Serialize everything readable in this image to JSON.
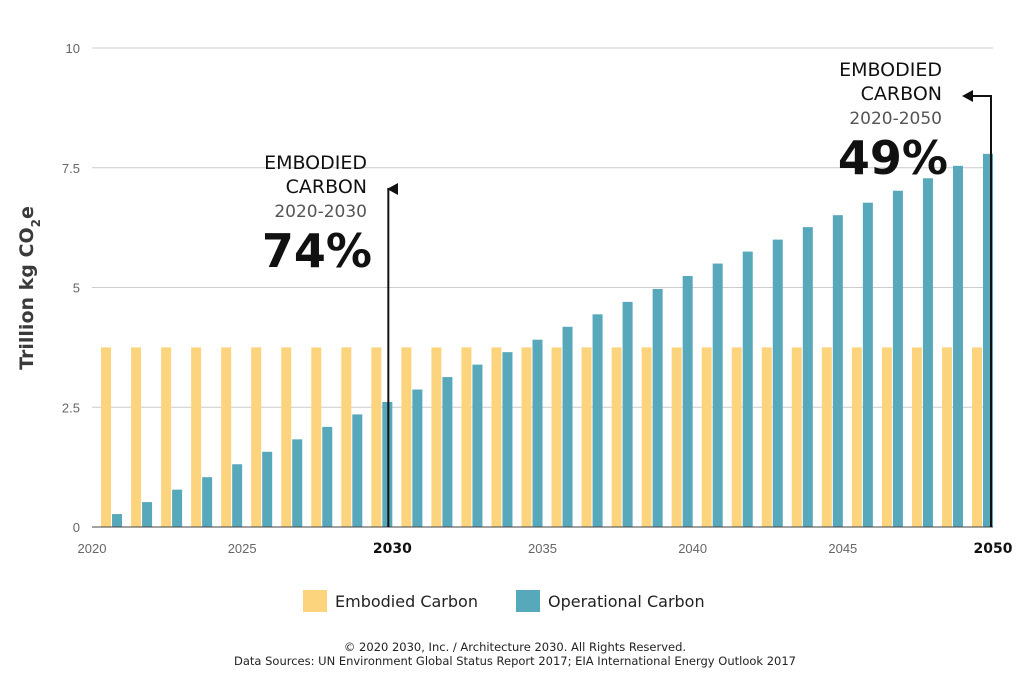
{
  "chart_data": {
    "type": "bar",
    "ylabel_main": "Trillion kg CO",
    "ylabel_sub": "2",
    "ylabel_tail": "e",
    "xlabel": "",
    "ylim": [
      0,
      10
    ],
    "yticks": [
      {
        "value": 0,
        "label": "0"
      },
      {
        "value": 2.5,
        "label": "2.5"
      },
      {
        "value": 5,
        "label": "5"
      },
      {
        "value": 7.5,
        "label": "7.5"
      },
      {
        "value": 10,
        "label": "10"
      }
    ],
    "xticks": [
      {
        "year": 2020,
        "label": "2020",
        "bold": false
      },
      {
        "year": 2025,
        "label": "2025",
        "bold": false
      },
      {
        "year": 2030,
        "label": "2030",
        "bold": true
      },
      {
        "year": 2035,
        "label": "2035",
        "bold": false
      },
      {
        "year": 2040,
        "label": "2040",
        "bold": false
      },
      {
        "year": 2045,
        "label": "2045",
        "bold": false
      },
      {
        "year": 2050,
        "label": "2050",
        "bold": true
      }
    ],
    "years": [
      2021,
      2022,
      2023,
      2024,
      2025,
      2026,
      2027,
      2028,
      2029,
      2030,
      2031,
      2032,
      2033,
      2034,
      2035,
      2036,
      2037,
      2038,
      2039,
      2040,
      2041,
      2042,
      2043,
      2044,
      2045,
      2046,
      2047,
      2048,
      2049,
      2050
    ],
    "grid": true,
    "legend_position": "bottom-center",
    "series": [
      {
        "name": "Embodied Carbon",
        "color": "#fdd47e",
        "values": [
          3.75,
          3.75,
          3.75,
          3.75,
          3.75,
          3.75,
          3.75,
          3.75,
          3.75,
          3.75,
          3.75,
          3.75,
          3.75,
          3.75,
          3.75,
          3.75,
          3.75,
          3.75,
          3.75,
          3.75,
          3.75,
          3.75,
          3.75,
          3.75,
          3.75,
          3.75,
          3.75,
          3.75,
          3.75,
          3.75
        ]
      },
      {
        "name": "Operational Carbon",
        "color": "#58a8bb",
        "values": [
          0.27,
          0.52,
          0.78,
          1.04,
          1.31,
          1.57,
          1.83,
          2.09,
          2.35,
          2.61,
          2.87,
          3.13,
          3.39,
          3.65,
          3.91,
          4.18,
          4.44,
          4.7,
          4.97,
          5.24,
          5.5,
          5.75,
          6.0,
          6.26,
          6.51,
          6.77,
          7.02,
          7.28,
          7.54,
          7.79
        ]
      }
    ],
    "annotations": [
      {
        "year": 2030,
        "line1": "EMBODIED",
        "line2": "CARBON",
        "range": "2020-2030",
        "percent": "74%"
      },
      {
        "year": 2050,
        "line1": "EMBODIED",
        "line2": "CARBON",
        "range": "2020-2050",
        "percent": "49%"
      }
    ]
  },
  "footer": {
    "copyright": "© 2020 2030, Inc. / Architecture 2030. All Rights Reserved.",
    "sources": "Data Sources: UN Environment Global Status Report 2017; EIA International Energy Outlook 2017"
  }
}
